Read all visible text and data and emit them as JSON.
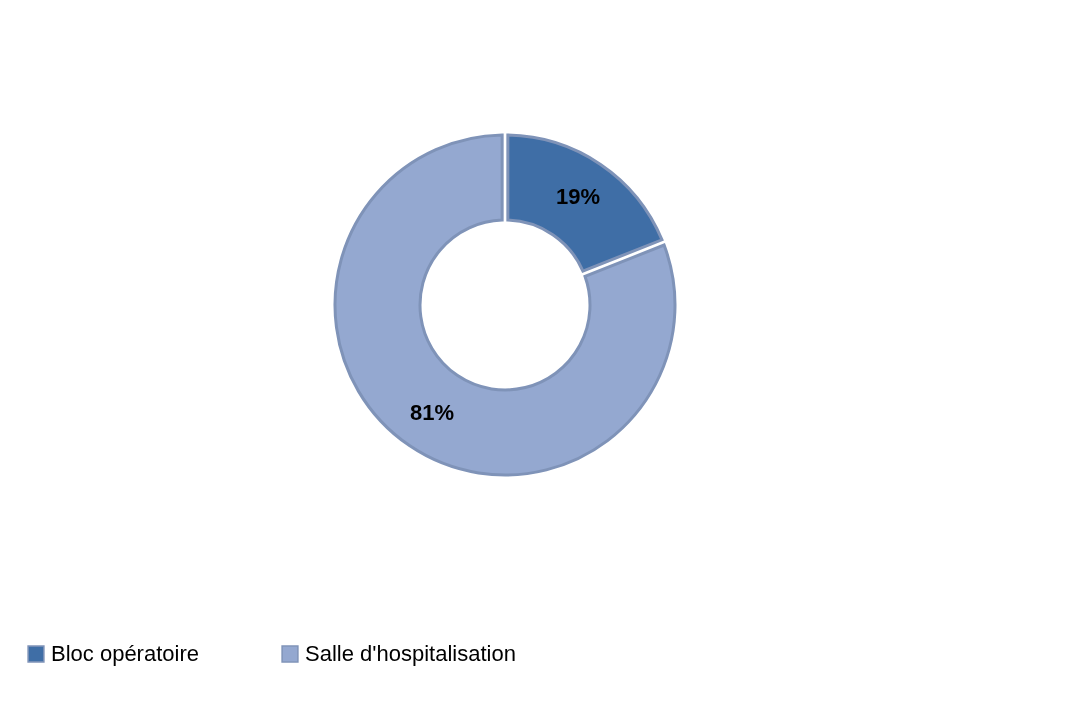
{
  "chart_data": {
    "type": "donut",
    "categories": [
      "Bloc opératoire",
      "Salle d'hospitalisation"
    ],
    "values": [
      19,
      81
    ],
    "colors": [
      "#3f6ea6",
      "#94a8d0"
    ],
    "value_labels": [
      "19%",
      "81%"
    ],
    "legend": "bottom"
  }
}
